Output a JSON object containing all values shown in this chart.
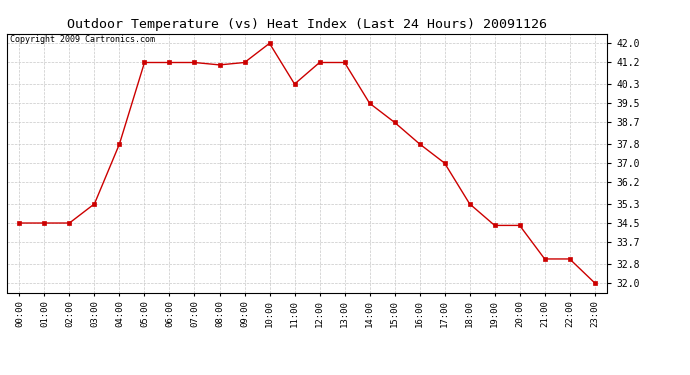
{
  "title": "Outdoor Temperature (vs) Heat Index (Last 24 Hours) 20091126",
  "copyright_text": "Copyright 2009 Cartronics.com",
  "x_labels": [
    "00:00",
    "01:00",
    "02:00",
    "03:00",
    "04:00",
    "05:00",
    "06:00",
    "07:00",
    "08:00",
    "09:00",
    "10:00",
    "11:00",
    "12:00",
    "13:00",
    "14:00",
    "15:00",
    "16:00",
    "17:00",
    "18:00",
    "19:00",
    "20:00",
    "21:00",
    "22:00",
    "23:00"
  ],
  "y_values": [
    34.5,
    34.5,
    34.5,
    35.3,
    37.8,
    41.2,
    41.2,
    41.2,
    41.1,
    41.2,
    42.0,
    40.3,
    41.2,
    41.2,
    39.5,
    38.7,
    37.8,
    37.0,
    35.3,
    34.4,
    34.4,
    33.0,
    33.0,
    32.0
  ],
  "y_ticks": [
    32.0,
    32.8,
    33.7,
    34.5,
    35.3,
    36.2,
    37.0,
    37.8,
    38.7,
    39.5,
    40.3,
    41.2,
    42.0
  ],
  "ylim": [
    31.6,
    42.4
  ],
  "line_color": "#cc0000",
  "marker_color": "#cc0000",
  "bg_color": "#ffffff",
  "plot_bg_color": "#ffffff",
  "grid_color": "#c8c8c8",
  "title_fontsize": 9.5,
  "copyright_fontsize": 6.0,
  "tick_fontsize": 6.5,
  "ytick_fontsize": 7.0
}
